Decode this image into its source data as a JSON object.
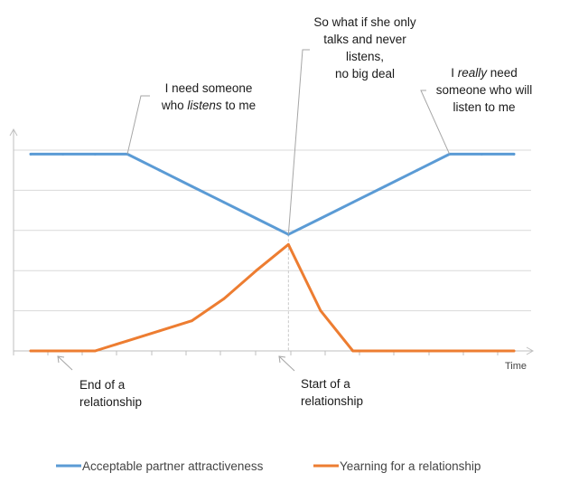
{
  "chart_data": {
    "type": "line",
    "title": "",
    "xlabel": "Time",
    "ylabel": "",
    "x": [
      0,
      1,
      2,
      3,
      4,
      5,
      6,
      7,
      8,
      9,
      10,
      11,
      12,
      13,
      14,
      15
    ],
    "xlim": [
      0,
      15
    ],
    "ylim": [
      0,
      5
    ],
    "grid": true,
    "legend_position": "bottom",
    "series": [
      {
        "name": "Acceptable partner attractiveness",
        "color": "#5B9BD5",
        "values": [
          4.9,
          4.9,
          4.9,
          4.9,
          4.5,
          4.1,
          3.7,
          3.3,
          2.9,
          3.3,
          3.7,
          4.1,
          4.5,
          4.9,
          4.9,
          4.9
        ]
      },
      {
        "name": "Yearning for a relationship",
        "color": "#ED7D31",
        "values": [
          0,
          0,
          0,
          0.25,
          0.5,
          0.75,
          1.3,
          2.0,
          2.65,
          1.0,
          0,
          0,
          0,
          0,
          0,
          0
        ]
      }
    ],
    "annotations": [
      {
        "key": "listens",
        "lines": [
          "I need someone",
          "who listens to me"
        ]
      },
      {
        "key": "so_what",
        "lines": [
          "So what if she only",
          "talks and never",
          "listens,",
          "no big deal"
        ]
      },
      {
        "key": "really",
        "lines": [
          "I really need",
          "someone who will",
          "listen to me"
        ]
      },
      {
        "key": "end_rel",
        "lines": [
          "End of a",
          "relationship"
        ]
      },
      {
        "key": "start_rel",
        "lines": [
          "Start of a",
          "relationship"
        ]
      }
    ]
  }
}
